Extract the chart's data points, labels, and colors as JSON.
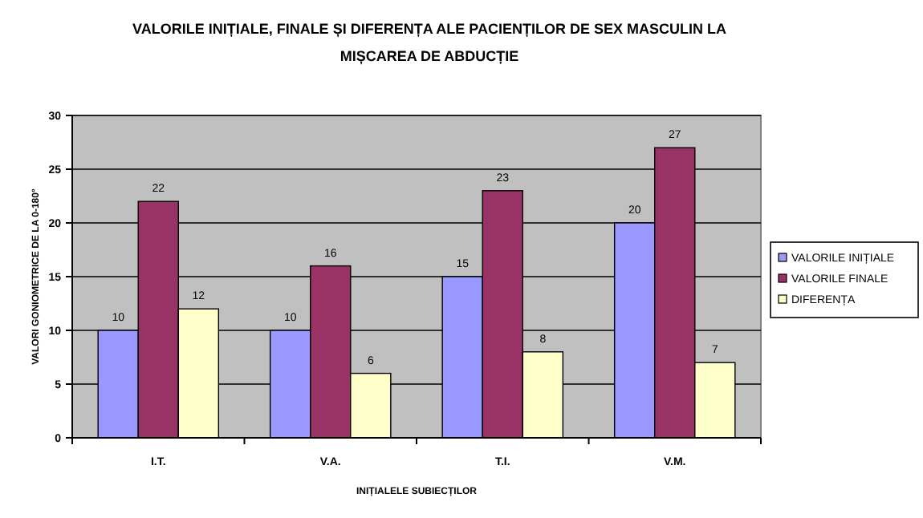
{
  "chart_data": {
    "type": "bar",
    "title": "VALORILE INIȚIALE, FINALE ȘI DIFERENȚA ALE PACIENȚILOR DE SEX MASCULIN LA MIȘCAREA DE ABDUCȚIE",
    "xlabel": "INIȚIALELE SUBIECȚILOR",
    "ylabel": "VALORI GONIOMETRICE DE LA 0-180°",
    "categories": [
      "I.T.",
      "V.A.",
      "T.I.",
      "V.M."
    ],
    "series": [
      {
        "name": "VALORILE INIȚIALE",
        "color": "#9999ff",
        "values": [
          10,
          10,
          15,
          20
        ]
      },
      {
        "name": "VALORILE FINALE",
        "color": "#993366",
        "values": [
          22,
          16,
          23,
          27
        ]
      },
      {
        "name": "DIFERENȚA",
        "color": "#ffffcc",
        "values": [
          12,
          6,
          8,
          7
        ]
      }
    ],
    "ylim": [
      0,
      30
    ],
    "yticks": [
      0,
      5,
      10,
      15,
      20,
      25,
      30
    ],
    "grid": "y",
    "legend": "right",
    "data_labels": true
  }
}
